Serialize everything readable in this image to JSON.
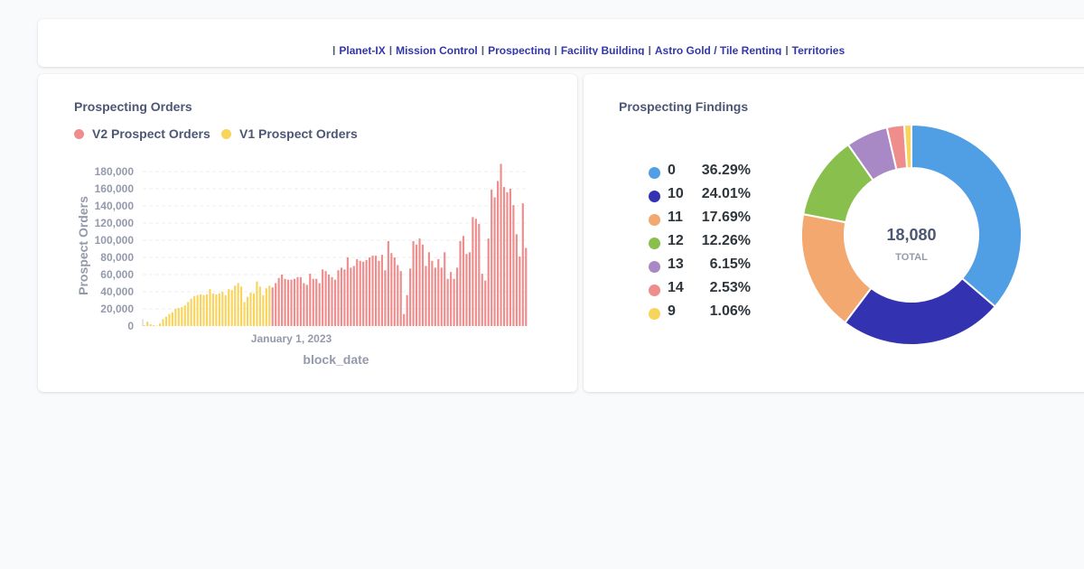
{
  "nav": {
    "prefix": "|",
    "links": [
      {
        "label": "Planet-IX",
        "sep": "|"
      },
      {
        "label": "Mission Control",
        "sep": "|"
      },
      {
        "label": "Prospecting",
        "sep": "|"
      },
      {
        "label": "Facility Building",
        "sep": "|"
      },
      {
        "label": "Astro Gold / Tile Renting",
        "sep": "|"
      },
      {
        "label": "Territories",
        "sep": ""
      }
    ]
  },
  "orders": {
    "title": "Prospecting Orders",
    "legend": [
      {
        "label": "V2 Prospect Orders",
        "color": "#ef8c8c"
      },
      {
        "label": "V1 Prospect Orders",
        "color": "#f9d45c"
      }
    ]
  },
  "findings": {
    "title": "Prospecting Findings",
    "total_value": "18,080",
    "total_label": "TOTAL"
  },
  "chart_data": [
    {
      "type": "bar",
      "xlabel": "block_date",
      "ylabel": "Prospect Orders",
      "ylim": [
        0,
        180000
      ],
      "yticks": [
        "0",
        "20,000",
        "40,000",
        "60,000",
        "80,000",
        "100,000",
        "120,000",
        "140,000",
        "160,000",
        "180,000"
      ],
      "xtick_label": "January 1, 2023",
      "xtick_index": 47,
      "grid": true,
      "legend_position": "top-left",
      "series": [
        {
          "name": "V1 Prospect Orders",
          "color": "#f9d45c",
          "values": [
            1000,
            5000,
            2000,
            1000,
            500,
            3000,
            8000,
            11000,
            14000,
            16000,
            20000,
            21000,
            22000,
            24000,
            28000,
            32000,
            35000,
            36000,
            37000,
            36000,
            37000,
            43000,
            38000,
            37000,
            38000,
            40000,
            36000,
            43000,
            42000,
            47000,
            50000,
            46000,
            28000,
            34000,
            39000,
            38000,
            52000,
            46000,
            36000,
            44000,
            47000
          ]
        },
        {
          "name": "V2 Prospect Orders",
          "color": "#ef8c8c",
          "values": [
            45000,
            50000,
            56000,
            60000,
            55000,
            54000,
            54000,
            55000,
            57000,
            57000,
            50000,
            48000,
            61000,
            55000,
            55000,
            50000,
            66000,
            64000,
            60000,
            57000,
            54000,
            65000,
            68000,
            66000,
            80000,
            68000,
            70000,
            78000,
            76000,
            75000,
            77000,
            80000,
            82000,
            82000,
            76000,
            83000,
            65000,
            99000,
            85000,
            80000,
            71000,
            64000,
            14000,
            36000,
            67000,
            99000,
            95000,
            102000,
            95000,
            70000,
            86000,
            76000,
            68000,
            78000,
            68000,
            86000,
            55000,
            63000,
            55000,
            68000,
            99000,
            105000,
            84000,
            86000,
            127000,
            125000,
            119000,
            61000,
            53000,
            102000,
            159000,
            150000,
            169000,
            189000,
            162000,
            156000,
            160000,
            141000,
            107000,
            81000,
            143000,
            91000
          ]
        }
      ]
    },
    {
      "type": "pie",
      "variant": "donut",
      "total": 18080,
      "slices": [
        {
          "label": "0",
          "percent": "36.29%",
          "value": 36.29,
          "color": "#509ee3"
        },
        {
          "label": "10",
          "percent": "24.01%",
          "value": 24.01,
          "color": "#3332b1"
        },
        {
          "label": "11",
          "percent": "17.69%",
          "value": 17.69,
          "color": "#f2a86f"
        },
        {
          "label": "12",
          "percent": "12.26%",
          "value": 12.26,
          "color": "#88bf4d"
        },
        {
          "label": "13",
          "percent": "6.15%",
          "value": 6.15,
          "color": "#a989c5"
        },
        {
          "label": "14",
          "percent": "2.53%",
          "value": 2.53,
          "color": "#ef8c8c"
        },
        {
          "label": "9",
          "percent": "1.06%",
          "value": 1.06,
          "color": "#f9d45c"
        }
      ]
    }
  ]
}
